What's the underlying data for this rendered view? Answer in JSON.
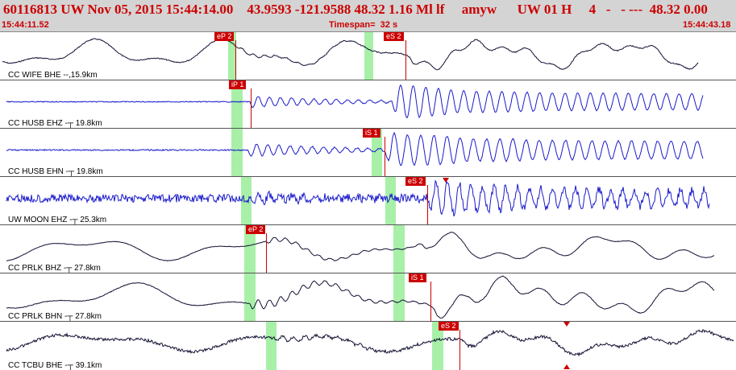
{
  "header": {
    "title": "60116813 UW Nov 05, 2015 15:44:14.00    43.9593 -121.9588 48.32 1.16 Ml lf     amyw      UW 01 H     4   -   - ---  48.32 0.00",
    "start_time": "15:44:11.52",
    "timespan": "Timespan=  32 s",
    "end_time": "15:44:43.18"
  },
  "colors": {
    "header_bg": "#d4d4d4",
    "text_red": "#cc0000",
    "trace_blue": "#1a1acc",
    "trace_black": "#111133",
    "band_green": "#a8f0a8",
    "pick_red": "#cc0000"
  },
  "channels": [
    {
      "label": "CC WIFE BHE --,15.9km",
      "picks": [
        "eP 2",
        "eS 2"
      ],
      "color": "black"
    },
    {
      "label": "CC HUSB EHZ -┬ 19.8km",
      "picks": [
        "iP 1"
      ],
      "color": "blue"
    },
    {
      "label": "CC HUSB EHN -┬ 19.8km",
      "picks": [
        "iS 1"
      ],
      "color": "blue"
    },
    {
      "label": "UW MOON EHZ -┬ 25.3km",
      "picks": [
        "eS 2"
      ],
      "color": "blue"
    },
    {
      "label": "CC PRLK BHZ -┬ 27.8km",
      "picks": [
        "eP 2"
      ],
      "color": "black"
    },
    {
      "label": "CC PRLK BHN -┬ 27.8km",
      "picks": [
        "iS 1"
      ],
      "color": "black"
    },
    {
      "label": "CC TCBU BHE -┬ 39.1km",
      "picks": [
        "eS 2"
      ],
      "color": "black"
    }
  ]
}
